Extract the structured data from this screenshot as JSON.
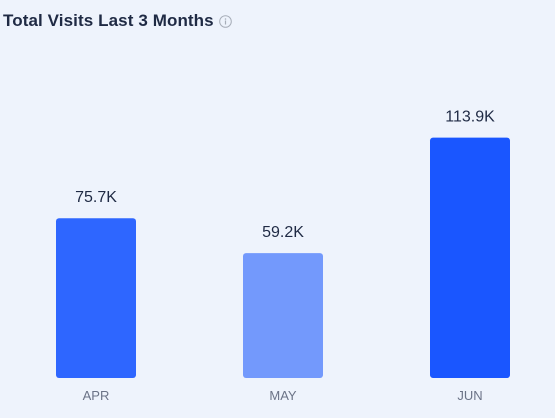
{
  "header": {
    "title": "Total Visits Last 3 Months",
    "info_icon": "info-icon"
  },
  "colors": {
    "background": "#eef3fc",
    "title": "#1f2a44",
    "value_label": "#1f2a44",
    "category_label": "#6b7387",
    "bar_colors": [
      "#2e66ff",
      "#7399fc",
      "#1a56ff"
    ]
  },
  "chart_data": {
    "type": "bar",
    "title": "Total Visits Last 3 Months",
    "categories": [
      "APR",
      "MAY",
      "JUN"
    ],
    "values": [
      75700,
      59200,
      113900
    ],
    "value_labels": [
      "75.7K",
      "59.2K",
      "113.9K"
    ],
    "xlabel": "",
    "ylabel": "",
    "ylim": [
      0,
      145000
    ],
    "grid": false,
    "legend": "none"
  }
}
